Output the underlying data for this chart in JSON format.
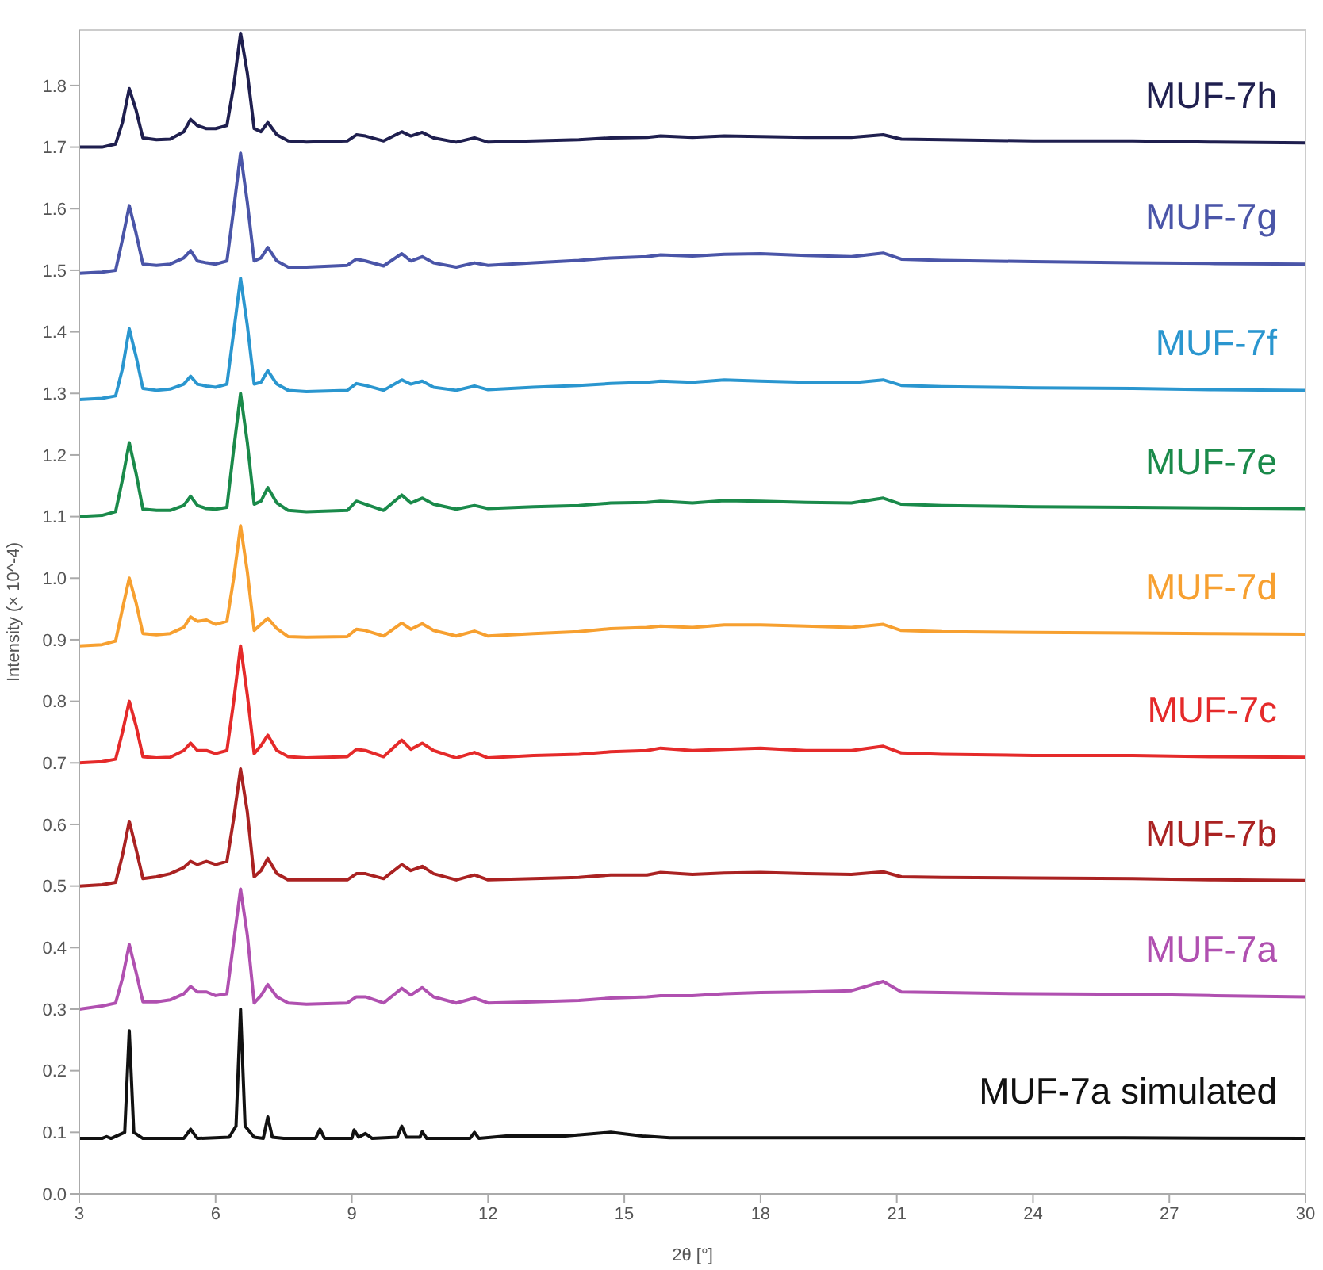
{
  "chart_data": {
    "type": "line",
    "xlabel": "2θ [°]",
    "ylabel": "Intensity (× 10^-4)",
    "xlim": [
      3,
      30
    ],
    "xticks": [
      3,
      6,
      9,
      12,
      15,
      18,
      21,
      24,
      27,
      30
    ],
    "ylim": [
      0,
      1.89
    ],
    "yticks": [
      {
        "value": 0,
        "label": "0.0"
      },
      0.1,
      0.2,
      0.3,
      0.4,
      0.5,
      0.6,
      0.7,
      0.8,
      0.9,
      {
        "value": 1,
        "label": "1.0"
      },
      1.1,
      1.2,
      1.3,
      1.4,
      1.5,
      1.6,
      1.7,
      1.8
    ],
    "grid": false,
    "legend": false,
    "marker": "none",
    "line_style": "solid",
    "x": [
      3,
      3.5,
      3.8,
      3.95,
      4.1,
      4.25,
      4.4,
      4.7,
      5.0,
      5.3,
      5.45,
      5.6,
      5.8,
      6.0,
      6.25,
      6.4,
      6.55,
      6.7,
      6.85,
      7.0,
      7.15,
      7.35,
      7.6,
      8.0,
      8.9,
      9.1,
      9.3,
      9.7,
      10.1,
      10.3,
      10.55,
      10.8,
      11.3,
      11.7,
      12.0,
      13,
      14,
      14.7,
      15.5,
      15.8,
      16.5,
      17.2,
      18,
      19,
      20,
      20.7,
      21.1,
      22,
      24,
      26.2,
      28,
      30
    ],
    "series": [
      {
        "name": "MUF-7h",
        "color": "#1f1f4f",
        "values": [
          1.7,
          1.7,
          1.705,
          1.74,
          1.795,
          1.76,
          1.715,
          1.712,
          1.713,
          1.725,
          1.745,
          1.735,
          1.73,
          1.73,
          1.735,
          1.8,
          1.885,
          1.82,
          1.73,
          1.725,
          1.74,
          1.72,
          1.71,
          1.708,
          1.71,
          1.72,
          1.718,
          1.71,
          1.725,
          1.718,
          1.724,
          1.715,
          1.708,
          1.715,
          1.708,
          1.71,
          1.712,
          1.715,
          1.716,
          1.718,
          1.716,
          1.718,
          1.717,
          1.716,
          1.716,
          1.72,
          1.713,
          1.712,
          1.71,
          1.71,
          1.708,
          1.707
        ]
      },
      {
        "name": "MUF-7g",
        "color": "#4a55a8",
        "values": [
          1.495,
          1.497,
          1.5,
          1.55,
          1.605,
          1.56,
          1.51,
          1.508,
          1.51,
          1.52,
          1.532,
          1.515,
          1.512,
          1.51,
          1.515,
          1.6,
          1.69,
          1.61,
          1.515,
          1.52,
          1.537,
          1.515,
          1.505,
          1.505,
          1.508,
          1.518,
          1.515,
          1.507,
          1.527,
          1.515,
          1.522,
          1.512,
          1.505,
          1.512,
          1.508,
          1.512,
          1.516,
          1.52,
          1.522,
          1.525,
          1.523,
          1.526,
          1.527,
          1.524,
          1.522,
          1.528,
          1.518,
          1.516,
          1.514,
          1.512,
          1.511,
          1.51
        ]
      },
      {
        "name": "MUF-7f",
        "color": "#2a96cf",
        "values": [
          1.29,
          1.292,
          1.296,
          1.34,
          1.405,
          1.36,
          1.308,
          1.305,
          1.307,
          1.315,
          1.328,
          1.315,
          1.312,
          1.31,
          1.315,
          1.4,
          1.487,
          1.41,
          1.315,
          1.318,
          1.337,
          1.315,
          1.305,
          1.303,
          1.305,
          1.316,
          1.313,
          1.305,
          1.322,
          1.315,
          1.32,
          1.31,
          1.305,
          1.312,
          1.306,
          1.31,
          1.313,
          1.316,
          1.318,
          1.32,
          1.318,
          1.322,
          1.32,
          1.318,
          1.317,
          1.322,
          1.313,
          1.311,
          1.309,
          1.308,
          1.306,
          1.305
        ]
      },
      {
        "name": "MUF-7e",
        "color": "#1a8a4a",
        "values": [
          1.1,
          1.102,
          1.108,
          1.16,
          1.22,
          1.17,
          1.112,
          1.11,
          1.11,
          1.118,
          1.133,
          1.118,
          1.113,
          1.112,
          1.115,
          1.21,
          1.3,
          1.22,
          1.12,
          1.125,
          1.147,
          1.122,
          1.11,
          1.108,
          1.11,
          1.125,
          1.12,
          1.11,
          1.135,
          1.122,
          1.13,
          1.12,
          1.112,
          1.118,
          1.113,
          1.116,
          1.118,
          1.122,
          1.123,
          1.125,
          1.122,
          1.126,
          1.125,
          1.123,
          1.122,
          1.13,
          1.12,
          1.118,
          1.116,
          1.115,
          1.114,
          1.113
        ]
      },
      {
        "name": "MUF-7d",
        "color": "#f7a030",
        "values": [
          0.89,
          0.892,
          0.898,
          0.95,
          1.0,
          0.96,
          0.91,
          0.908,
          0.91,
          0.92,
          0.937,
          0.93,
          0.932,
          0.925,
          0.93,
          1.0,
          1.085,
          1.01,
          0.915,
          0.925,
          0.935,
          0.918,
          0.905,
          0.904,
          0.905,
          0.917,
          0.915,
          0.906,
          0.927,
          0.917,
          0.926,
          0.915,
          0.906,
          0.914,
          0.906,
          0.91,
          0.913,
          0.918,
          0.92,
          0.922,
          0.92,
          0.924,
          0.924,
          0.922,
          0.92,
          0.925,
          0.915,
          0.913,
          0.912,
          0.911,
          0.91,
          0.909
        ]
      },
      {
        "name": "MUF-7c",
        "color": "#e52a2a",
        "values": [
          0.7,
          0.702,
          0.706,
          0.75,
          0.8,
          0.76,
          0.71,
          0.708,
          0.709,
          0.72,
          0.732,
          0.72,
          0.72,
          0.715,
          0.72,
          0.8,
          0.89,
          0.81,
          0.715,
          0.728,
          0.745,
          0.72,
          0.71,
          0.708,
          0.71,
          0.722,
          0.72,
          0.71,
          0.737,
          0.722,
          0.732,
          0.72,
          0.708,
          0.717,
          0.708,
          0.712,
          0.714,
          0.718,
          0.72,
          0.724,
          0.72,
          0.722,
          0.724,
          0.72,
          0.72,
          0.727,
          0.716,
          0.714,
          0.712,
          0.712,
          0.71,
          0.709
        ]
      },
      {
        "name": "MUF-7b",
        "color": "#aa2222",
        "values": [
          0.5,
          0.502,
          0.506,
          0.55,
          0.605,
          0.56,
          0.512,
          0.515,
          0.52,
          0.53,
          0.54,
          0.535,
          0.54,
          0.535,
          0.54,
          0.61,
          0.69,
          0.62,
          0.515,
          0.525,
          0.545,
          0.52,
          0.51,
          0.51,
          0.51,
          0.52,
          0.52,
          0.512,
          0.535,
          0.525,
          0.532,
          0.52,
          0.51,
          0.518,
          0.51,
          0.512,
          0.514,
          0.518,
          0.518,
          0.522,
          0.519,
          0.521,
          0.522,
          0.52,
          0.519,
          0.523,
          0.515,
          0.514,
          0.513,
          0.512,
          0.51,
          0.509
        ]
      },
      {
        "name": "MUF-7a",
        "color": "#b050b0",
        "values": [
          0.3,
          0.305,
          0.31,
          0.35,
          0.405,
          0.36,
          0.312,
          0.312,
          0.315,
          0.325,
          0.337,
          0.328,
          0.328,
          0.322,
          0.325,
          0.41,
          0.495,
          0.42,
          0.31,
          0.322,
          0.34,
          0.32,
          0.31,
          0.308,
          0.31,
          0.32,
          0.32,
          0.31,
          0.334,
          0.323,
          0.335,
          0.32,
          0.31,
          0.318,
          0.31,
          0.312,
          0.314,
          0.318,
          0.32,
          0.322,
          0.322,
          0.325,
          0.327,
          0.328,
          0.33,
          0.345,
          0.328,
          0.327,
          0.325,
          0.324,
          0.322,
          0.32
        ]
      },
      {
        "name": "MUF-7a simulated",
        "color": "#111111",
        "x": [
          3,
          3.5,
          3.6,
          3.7,
          4.0,
          4.1,
          4.2,
          4.4,
          5.3,
          5.45,
          5.6,
          6.3,
          6.45,
          6.55,
          6.65,
          6.85,
          7.05,
          7.15,
          7.25,
          7.5,
          8.2,
          8.3,
          8.4,
          9.0,
          9.05,
          9.15,
          9.3,
          9.45,
          10.0,
          10.1,
          10.2,
          10.5,
          10.55,
          10.65,
          11.6,
          11.7,
          11.8,
          12.4,
          13.7,
          14.7,
          15.4,
          16,
          20,
          26,
          30
        ],
        "values": [
          0.09,
          0.09,
          0.093,
          0.09,
          0.1,
          0.265,
          0.1,
          0.09,
          0.09,
          0.105,
          0.09,
          0.092,
          0.11,
          0.3,
          0.11,
          0.092,
          0.09,
          0.125,
          0.092,
          0.09,
          0.09,
          0.105,
          0.09,
          0.09,
          0.104,
          0.092,
          0.098,
          0.09,
          0.092,
          0.11,
          0.092,
          0.092,
          0.101,
          0.09,
          0.09,
          0.1,
          0.09,
          0.094,
          0.094,
          0.1,
          0.094,
          0.091,
          0.091,
          0.091,
          0.09
        ]
      }
    ]
  }
}
